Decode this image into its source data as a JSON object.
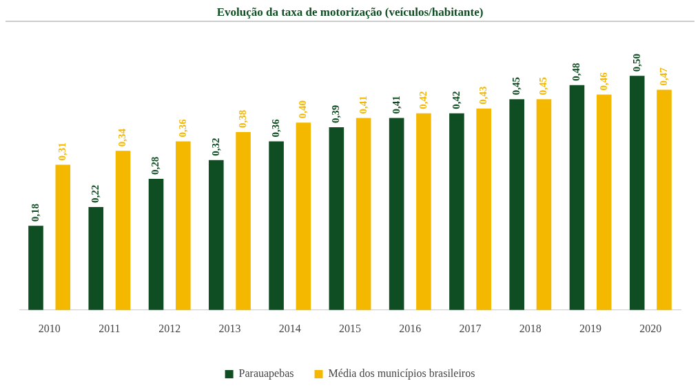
{
  "chart_data": {
    "type": "bar",
    "title": "Evolução da taxa de motorização (veículos/habitante)",
    "categories": [
      "2010",
      "2011",
      "2012",
      "2013",
      "2014",
      "2015",
      "2016",
      "2017",
      "2018",
      "2019",
      "2020"
    ],
    "series": [
      {
        "name": "Parauapebas",
        "color": "#0f4d22",
        "values": [
          0.18,
          0.22,
          0.28,
          0.32,
          0.36,
          0.39,
          0.41,
          0.42,
          0.45,
          0.48,
          0.5
        ],
        "value_labels": [
          "0,18",
          "0,22",
          "0,28",
          "0,32",
          "0,36",
          "0,39",
          "0,41",
          "0,42",
          "0,45",
          "0,48",
          "0,50"
        ]
      },
      {
        "name": "Média dos municípios brasileiros",
        "color": "#f5b800",
        "values": [
          0.31,
          0.34,
          0.36,
          0.38,
          0.4,
          0.41,
          0.42,
          0.43,
          0.45,
          0.46,
          0.47
        ],
        "value_labels": [
          "0,31",
          "0,34",
          "0,36",
          "0,38",
          "0,40",
          "0,41",
          "0,42",
          "0,43",
          "0,45",
          "0,46",
          "0,47"
        ]
      }
    ],
    "legend": "bottom"
  }
}
